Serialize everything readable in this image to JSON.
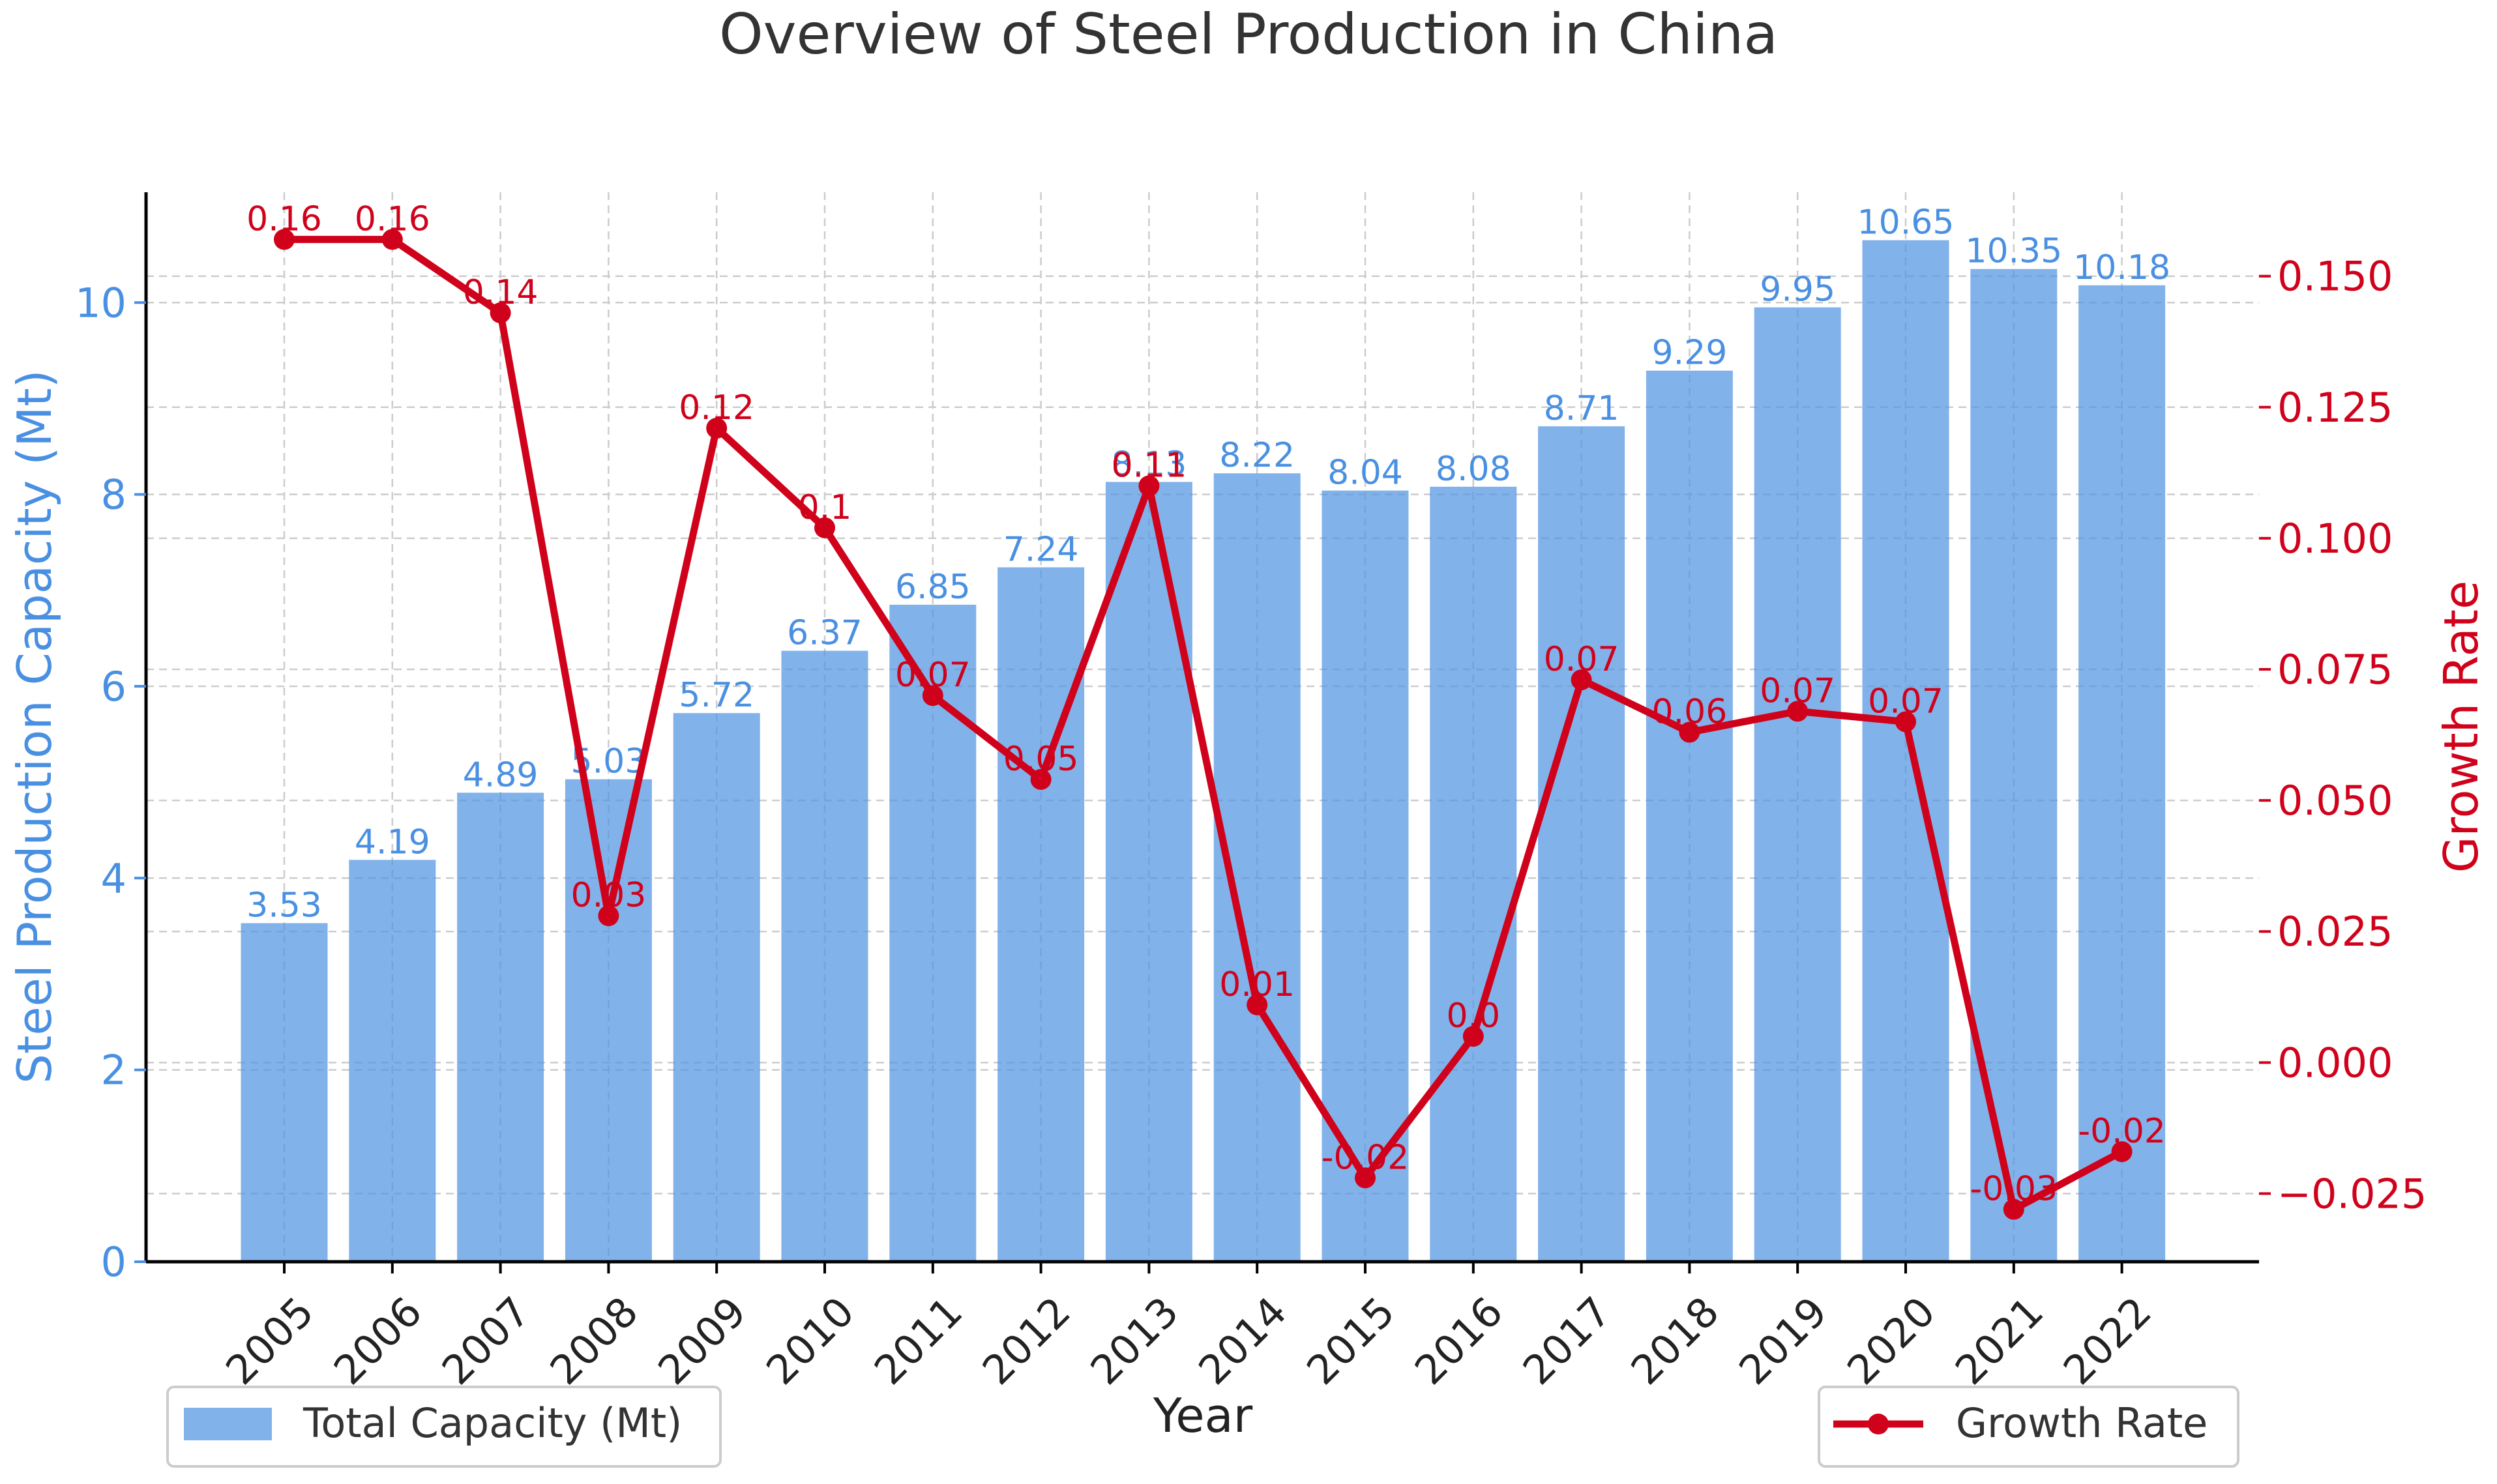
{
  "chart_data": {
    "type": "bar",
    "title": "Overview of Steel Production in China",
    "xlabel": "Year",
    "ylabel": "Steel Production Capacity (Mt)",
    "ylabel_right": "Growth Rate",
    "categories": [
      "2005",
      "2006",
      "2007",
      "2008",
      "2009",
      "2010",
      "2011",
      "2012",
      "2013",
      "2014",
      "2015",
      "2016",
      "2017",
      "2018",
      "2019",
      "2020",
      "2021",
      "2022"
    ],
    "series": [
      {
        "name": "Total Capacity (Mt)",
        "type": "bar",
        "axis": "left",
        "color": "#5294e2",
        "values": [
          3.53,
          4.19,
          4.89,
          5.03,
          5.72,
          6.37,
          6.85,
          7.24,
          8.13,
          8.22,
          8.04,
          8.08,
          8.71,
          9.29,
          9.95,
          10.65,
          10.35,
          10.18
        ],
        "labels": [
          "3.53",
          "4.19",
          "4.89",
          "5.03",
          "5.72",
          "6.37",
          "6.85",
          "7.24",
          "8.13",
          "8.22",
          "8.04",
          "8.08",
          "8.71",
          "9.29",
          "9.95",
          "10.65",
          "10.35",
          "10.18"
        ]
      },
      {
        "name": "Growth Rate",
        "type": "line",
        "axis": "right",
        "color": "#d0021b",
        "values": [
          0.157,
          0.157,
          0.143,
          0.028,
          0.121,
          0.102,
          0.07,
          0.054,
          0.11,
          0.011,
          -0.022,
          0.005,
          0.073,
          0.063,
          0.067,
          0.065,
          -0.028,
          -0.017
        ],
        "labels": [
          "0.16",
          "0.16",
          "0.14",
          "0.03",
          "0.12",
          "0.1",
          "0.07",
          "0.05",
          "0.11",
          "0.01",
          "-0.02",
          "0.0",
          "0.07",
          "0.06",
          "0.07",
          "0.07",
          "-0.03",
          "-0.02"
        ]
      }
    ],
    "ylim": [
      0,
      11.15
    ],
    "ylim_right": [
      -0.038,
      0.166
    ],
    "yticks": [
      "0",
      "2",
      "4",
      "6",
      "8",
      "10"
    ],
    "yticks_right": [
      "−0.025",
      "0.000",
      "0.025",
      "0.050",
      "0.075",
      "0.100",
      "0.125",
      "0.150"
    ],
    "yticks_right_values": [
      -0.025,
      0,
      0.025,
      0.05,
      0.075,
      0.1,
      0.125,
      0.15
    ],
    "grid": true,
    "legend": [
      {
        "label": "Total Capacity (Mt)",
        "placement": "bottom-left"
      },
      {
        "label": "Growth Rate",
        "placement": "bottom-right"
      }
    ]
  }
}
